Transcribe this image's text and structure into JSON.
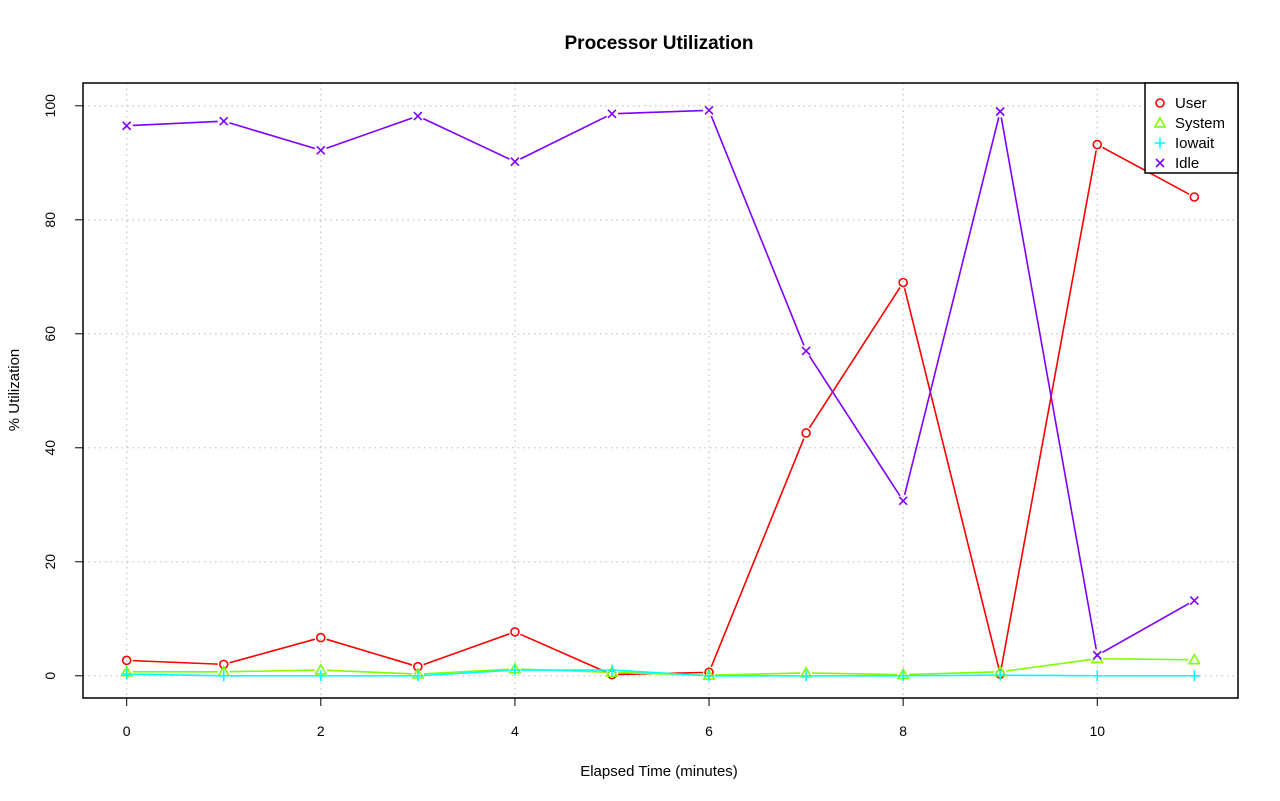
{
  "chart_data": {
    "type": "line",
    "title": "Processor Utilization",
    "xlabel": "Elapsed Time (minutes)",
    "ylabel": "% Utilization",
    "xlim": [
      -0.45,
      11.45
    ],
    "ylim": [
      -3.9,
      104
    ],
    "x_ticks": [
      0,
      2,
      4,
      6,
      8,
      10
    ],
    "y_ticks": [
      0,
      20,
      40,
      60,
      80,
      100
    ],
    "grid": true,
    "legend_position": "top-right",
    "x": [
      0,
      1,
      2,
      3,
      4,
      5,
      6,
      7,
      8,
      9,
      10,
      11
    ],
    "series": [
      {
        "name": "User",
        "color": "#ff0000",
        "marker": "circle",
        "values": [
          2.7,
          2.0,
          6.7,
          1.6,
          7.7,
          0.2,
          0.6,
          42.6,
          69.0,
          0.3,
          93.2,
          84.0
        ]
      },
      {
        "name": "System",
        "color": "#80ff00",
        "marker": "triangle",
        "values": [
          0.7,
          0.7,
          1.0,
          0.3,
          1.2,
          0.6,
          0.1,
          0.5,
          0.2,
          0.7,
          3.0,
          2.8
        ]
      },
      {
        "name": "Iowait",
        "color": "#00ffff",
        "marker": "plus",
        "values": [
          0.3,
          0.0,
          0.0,
          0.0,
          1.0,
          1.0,
          0.0,
          0.0,
          0.0,
          0.1,
          0.0,
          0.0
        ]
      },
      {
        "name": "Idle",
        "color": "#8000ff",
        "marker": "cross",
        "values": [
          96.5,
          97.3,
          92.2,
          98.2,
          90.2,
          98.6,
          99.2,
          57.0,
          30.7,
          99.0,
          3.6,
          13.2
        ]
      }
    ]
  }
}
